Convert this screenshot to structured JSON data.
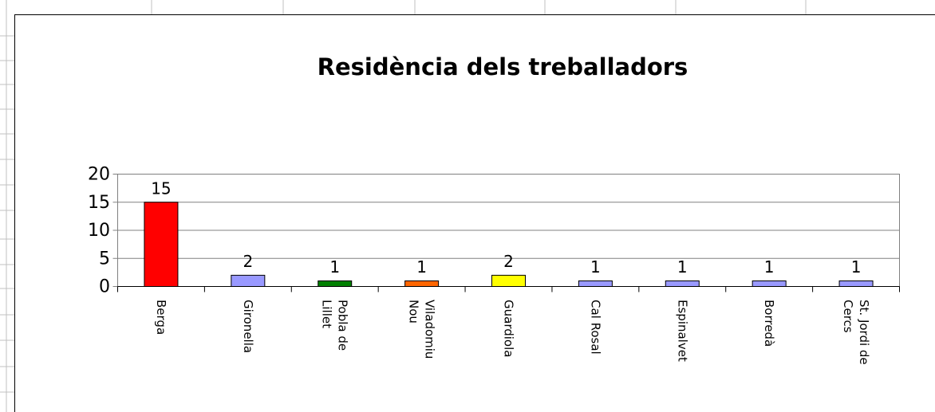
{
  "chart_data": {
    "type": "bar",
    "title": "Residència dels treballadors",
    "categories": [
      "Berga",
      "Gironella",
      "Pobla de Lillet",
      "Viladomiu Nou",
      "Guardiola",
      "Cal Rosal",
      "Espinalvet",
      "Borredà",
      "St. Jordi de Cercs"
    ],
    "values": [
      15,
      2,
      1,
      1,
      2,
      1,
      1,
      1,
      1
    ],
    "colors": [
      "#ff0000",
      "#9999ff",
      "#008000",
      "#ff6600",
      "#ffff00",
      "#9999ff",
      "#9999ff",
      "#9999ff",
      "#9999ff"
    ],
    "ylim": [
      0,
      20
    ],
    "yticks": [
      0,
      5,
      10,
      15,
      20
    ],
    "grid": true
  }
}
